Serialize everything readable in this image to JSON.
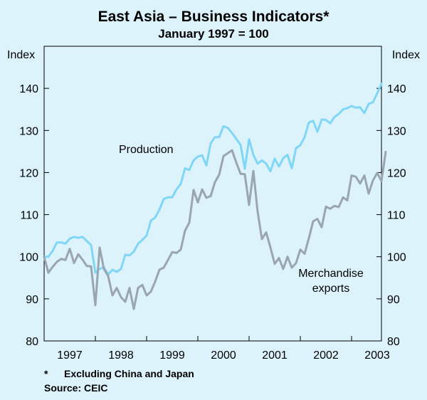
{
  "chart_data": {
    "type": "line",
    "title": "East Asia – Business Indicators*",
    "subtitle": "January 1997 = 100",
    "ylabel_left": "Index",
    "ylabel_right": "Index",
    "ylim": [
      80,
      150
    ],
    "yticks": [
      80,
      90,
      100,
      110,
      120,
      130,
      140
    ],
    "xlim": [
      1997.0,
      2003.583
    ],
    "xticks": [
      {
        "label": "1997",
        "at": 1997.5
      },
      {
        "label": "1998",
        "at": 1998.5
      },
      {
        "label": "1999",
        "at": 1999.5
      },
      {
        "label": "2000",
        "at": 2000.5
      },
      {
        "label": "2001",
        "at": 2001.5
      },
      {
        "label": "2002",
        "at": 2002.5
      },
      {
        "label": "2003",
        "at": 2003.5
      }
    ],
    "series": [
      {
        "name": "Production",
        "color": "#7fd6f7",
        "start": "1997-01",
        "values": [
          100,
          100,
          101.4,
          103.4,
          103.4,
          103.1,
          104.3,
          104.7,
          104.5,
          104.7,
          103.7,
          102.8,
          96.2,
          97.1,
          97.5,
          95.8,
          96.9,
          96.4,
          97.1,
          100.5,
          100.3,
          101.2,
          103.1,
          104,
          105,
          108.6,
          109.3,
          111.2,
          113.7,
          114.1,
          114.1,
          116,
          117.3,
          121,
          120.6,
          122.9,
          123.8,
          124.1,
          121.7,
          126.9,
          128.4,
          128.4,
          131,
          130.6,
          129.4,
          128,
          126.6,
          120.9,
          127.9,
          124.2,
          122.1,
          122.9,
          122.1,
          120.3,
          123.3,
          121.4,
          123.4,
          124.2,
          121,
          125.8,
          126.5,
          128.4,
          131.9,
          132.3,
          129.7,
          132.6,
          132.5,
          131.7,
          133.2,
          133.9,
          135,
          135.3,
          135.8,
          135.4,
          135.5,
          134.1,
          136.3,
          136.7,
          138.8,
          141.1
        ]
      },
      {
        "name": "Merchandise exports",
        "label_lines": [
          "Merchandise",
          "exports"
        ],
        "color": "#9aa5ad",
        "start": "1997-01",
        "values": [
          100,
          96.2,
          97.6,
          98.8,
          99.5,
          99.2,
          101.9,
          98.5,
          100.6,
          99.3,
          97.8,
          97.7,
          88.5,
          102.2,
          97.1,
          95.4,
          90.8,
          92.6,
          90.4,
          89.3,
          92.6,
          87.6,
          92.6,
          93.3,
          90.8,
          91.7,
          94.1,
          96.9,
          97.4,
          99.2,
          101.1,
          100.9,
          101.7,
          106.2,
          108.1,
          115.9,
          112.9,
          116,
          114,
          114.4,
          117.7,
          119.5,
          123.9,
          124.6,
          125.3,
          122.4,
          119.7,
          119.6,
          112.3,
          120.4,
          110.7,
          104.2,
          105.8,
          102.2,
          98.3,
          99.7,
          97.1,
          100,
          97.4,
          98.5,
          101.7,
          100.7,
          104.4,
          108.4,
          109,
          107,
          111.9,
          111.4,
          112.1,
          111.8,
          114.1,
          113.4,
          119.3,
          119,
          117.4,
          119.3,
          115,
          118.1,
          119.9,
          118,
          124.9
        ]
      }
    ],
    "grid": false,
    "legend": "inline labels"
  },
  "notes": {
    "asterisk": "*",
    "footnote": "Excluding China and Japan",
    "source": "Source: CEIC"
  }
}
